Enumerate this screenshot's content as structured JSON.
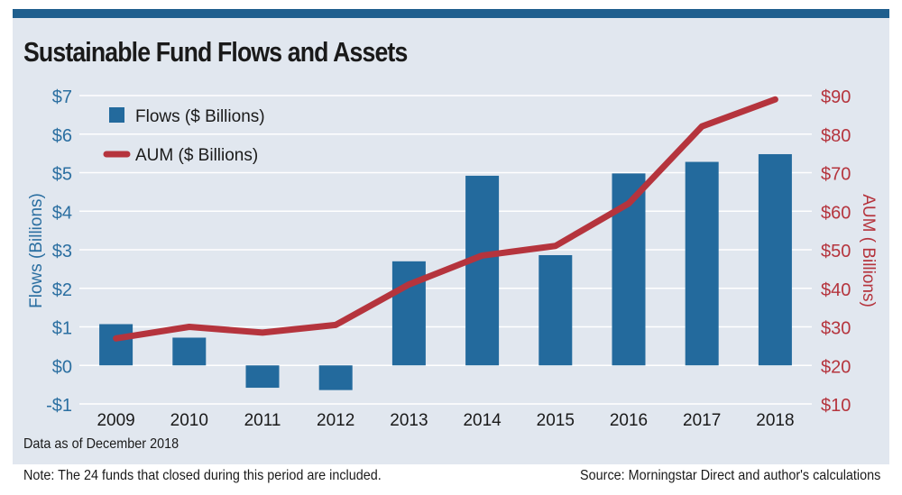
{
  "chart_data": {
    "type": "bar+line",
    "title": "Sustainable Fund Flows and Assets",
    "categories": [
      "2009",
      "2010",
      "2011",
      "2012",
      "2013",
      "2014",
      "2015",
      "2016",
      "2017",
      "2018"
    ],
    "series": [
      {
        "name": "Flows ($ Billions)",
        "type": "bar",
        "axis": "left",
        "values": [
          1.07,
          0.72,
          -0.58,
          -0.64,
          2.7,
          4.92,
          2.86,
          4.98,
          5.28,
          5.48
        ]
      },
      {
        "name": "AUM ($ Billions)",
        "type": "line",
        "axis": "right",
        "values": [
          27,
          30,
          28.5,
          30.5,
          41,
          48.5,
          51,
          62,
          82,
          89
        ]
      }
    ],
    "y_left": {
      "label": "Flows  (Billions)",
      "ylim": [
        -1,
        7
      ],
      "ticks": [
        -1,
        0,
        1,
        2,
        3,
        4,
        5,
        6,
        7
      ],
      "tick_labels": [
        "-$1",
        "$0",
        "$1",
        "$2",
        "$3",
        "$4",
        "$5",
        "$6",
        "$7"
      ]
    },
    "y_right": {
      "label": "AUM  ( Billions)",
      "ylim": [
        10,
        90
      ],
      "ticks": [
        10,
        20,
        30,
        40,
        50,
        60,
        70,
        80,
        90
      ],
      "tick_labels": [
        "$10",
        "$20",
        "$30",
        "$40",
        "$50",
        "$60",
        "$70",
        "$80",
        "$90"
      ]
    },
    "grid": true,
    "legend": "top-left",
    "colors": {
      "bar": "#236a9d",
      "line": "#b5343d",
      "left_axis": "#2b6fa1",
      "right_axis": "#b5343d",
      "grid": "#ffffff"
    }
  },
  "notes": {
    "date": "Data as of December 2018",
    "closed_funds": "Note: The 24 funds that closed during this period are included.",
    "source": "Source: Morningstar Direct and author's calculations"
  }
}
